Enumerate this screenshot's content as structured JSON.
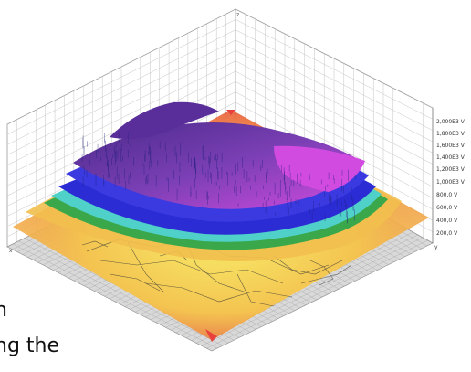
{
  "colors": {
    "grid": "#b8b8b8",
    "floor_grid": "#9a9a9a",
    "plane_red": "#e84a3c",
    "plane_orange": "#f39a42",
    "plane_yellow": "#f7e25a",
    "band_green": "#3aa84a",
    "band_cyan": "#4fd0c8",
    "band_blue": "#2c2cd4",
    "band_purple": "#7a3fb4",
    "band_magenta": "#d24be0"
  },
  "axis": {
    "z_ticks": [
      "2,000E3 V",
      "1,800E3 V",
      "1,600E3 V",
      "1,400E3 V",
      "1,200E3 V",
      "1,000E3 V",
      "800,0 V",
      "600,0 V",
      "400,0 V",
      "200,0 V"
    ],
    "corner_left": "x",
    "corner_right": "y",
    "corner_top": "z"
  },
  "caption": {
    "line1": "n",
    "line2": "ng the"
  }
}
